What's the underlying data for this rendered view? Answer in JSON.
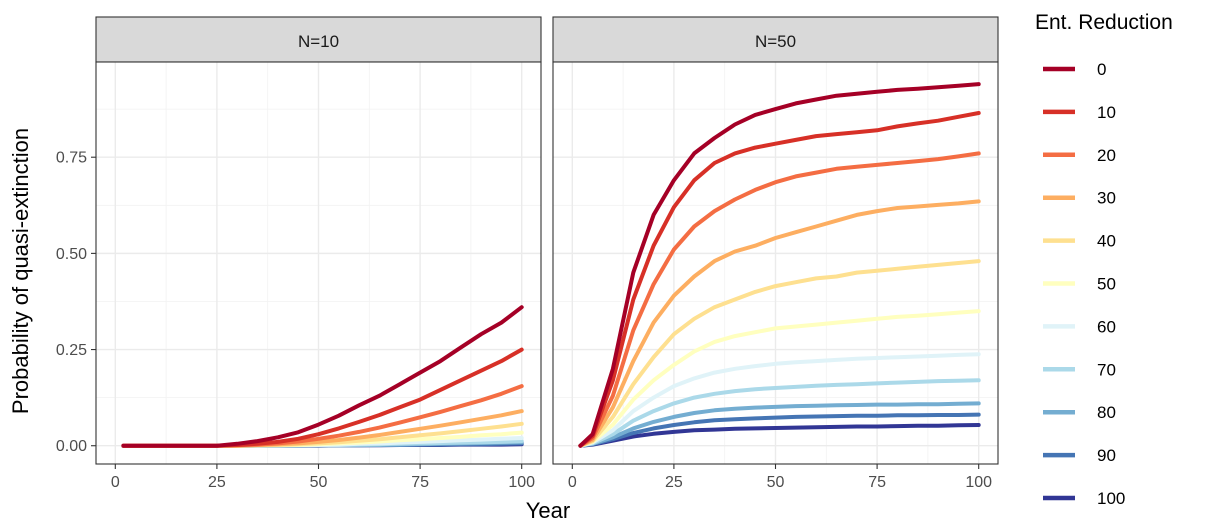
{
  "chart_data": {
    "type": "line",
    "xlabel": "Year",
    "ylabel": "Probability of quasi-extinction",
    "xlim": [
      0,
      100
    ],
    "ylim": [
      0,
      0.95
    ],
    "x_ticks": [
      0,
      25,
      50,
      75,
      100
    ],
    "y_ticks": [
      0.0,
      0.25,
      0.5,
      0.75
    ],
    "y_tick_labels": [
      "0.00",
      "0.25",
      "0.50",
      "0.75"
    ],
    "x_tick_labels": [
      "0",
      "25",
      "50",
      "75",
      "100"
    ],
    "grid": true,
    "theme": "ggplot2 theme_bw",
    "x": [
      2,
      5,
      10,
      15,
      20,
      25,
      30,
      35,
      40,
      45,
      50,
      55,
      60,
      65,
      70,
      75,
      80,
      85,
      90,
      95,
      100
    ],
    "legend": {
      "title": "Ent. Reduction",
      "position": "right",
      "entries": [
        {
          "label": "0",
          "color": "#A50026"
        },
        {
          "label": "10",
          "color": "#D73027"
        },
        {
          "label": "20",
          "color": "#F46D43"
        },
        {
          "label": "30",
          "color": "#FDAE61"
        },
        {
          "label": "40",
          "color": "#FEE090"
        },
        {
          "label": "50",
          "color": "#FFFFBF"
        },
        {
          "label": "60",
          "color": "#E0F3F8"
        },
        {
          "label": "70",
          "color": "#ABD9E9"
        },
        {
          "label": "80",
          "color": "#74ADD1"
        },
        {
          "label": "90",
          "color": "#4575B4"
        },
        {
          "label": "100",
          "color": "#313695"
        }
      ]
    },
    "panels": [
      {
        "strip": "N=10",
        "series": [
          {
            "name": "0",
            "values": [
              0,
              0,
              0,
              0,
              0,
              0,
              0.005,
              0.012,
              0.022,
              0.035,
              0.055,
              0.078,
              0.105,
              0.13,
              0.16,
              0.19,
              0.22,
              0.255,
              0.29,
              0.32,
              0.36
            ]
          },
          {
            "name": "10",
            "values": [
              0,
              0,
              0,
              0,
              0,
              0,
              0.002,
              0.005,
              0.01,
              0.018,
              0.03,
              0.045,
              0.062,
              0.08,
              0.1,
              0.12,
              0.145,
              0.17,
              0.195,
              0.22,
              0.25
            ]
          },
          {
            "name": "20",
            "values": [
              0,
              0,
              0,
              0,
              0,
              0,
              0.001,
              0.003,
              0.006,
              0.011,
              0.018,
              0.026,
              0.036,
              0.047,
              0.06,
              0.074,
              0.088,
              0.103,
              0.118,
              0.135,
              0.155
            ]
          },
          {
            "name": "30",
            "values": [
              0,
              0,
              0,
              0,
              0,
              0,
              0,
              0.002,
              0.004,
              0.006,
              0.01,
              0.015,
              0.021,
              0.028,
              0.036,
              0.044,
              0.052,
              0.061,
              0.07,
              0.079,
              0.09
            ]
          },
          {
            "name": "40",
            "values": [
              0,
              0,
              0,
              0,
              0,
              0,
              0,
              0.001,
              0.002,
              0.004,
              0.006,
              0.009,
              0.013,
              0.017,
              0.022,
              0.027,
              0.032,
              0.038,
              0.044,
              0.05,
              0.057
            ]
          },
          {
            "name": "50",
            "values": [
              0,
              0,
              0,
              0,
              0,
              0,
              0,
              0.001,
              0.001,
              0.002,
              0.004,
              0.006,
              0.008,
              0.011,
              0.014,
              0.017,
              0.02,
              0.023,
              0.027,
              0.03,
              0.034
            ]
          },
          {
            "name": "60",
            "values": [
              0,
              0,
              0,
              0,
              0,
              0,
              0,
              0,
              0.001,
              0.001,
              0.002,
              0.003,
              0.005,
              0.006,
              0.008,
              0.01,
              0.012,
              0.014,
              0.016,
              0.018,
              0.02
            ]
          },
          {
            "name": "70",
            "values": [
              0,
              0,
              0,
              0,
              0,
              0,
              0,
              0,
              0,
              0.001,
              0.001,
              0.002,
              0.003,
              0.004,
              0.005,
              0.006,
              0.007,
              0.008,
              0.009,
              0.01,
              0.012
            ]
          },
          {
            "name": "80",
            "values": [
              0,
              0,
              0,
              0,
              0,
              0,
              0,
              0,
              0,
              0,
              0.001,
              0.001,
              0.002,
              0.002,
              0.003,
              0.004,
              0.005,
              0.006,
              0.007,
              0.008,
              0.009
            ]
          },
          {
            "name": "90",
            "values": [
              0,
              0,
              0,
              0,
              0,
              0,
              0,
              0,
              0,
              0,
              0.001,
              0.001,
              0.001,
              0.002,
              0.002,
              0.003,
              0.003,
              0.004,
              0.004,
              0.005,
              0.006
            ]
          },
          {
            "name": "100",
            "values": [
              0,
              0,
              0,
              0,
              0,
              0,
              0,
              0,
              0,
              0,
              0,
              0.001,
              0.001,
              0.001,
              0.002,
              0.002,
              0.002,
              0.003,
              0.003,
              0.003,
              0.004
            ]
          }
        ]
      },
      {
        "strip": "N=50",
        "series": [
          {
            "name": "0",
            "values": [
              0,
              0.03,
              0.2,
              0.45,
              0.6,
              0.69,
              0.76,
              0.8,
              0.835,
              0.86,
              0.875,
              0.89,
              0.9,
              0.91,
              0.915,
              0.92,
              0.925,
              0.928,
              0.932,
              0.936,
              0.94
            ]
          },
          {
            "name": "10",
            "values": [
              0,
              0.025,
              0.17,
              0.38,
              0.52,
              0.62,
              0.69,
              0.735,
              0.76,
              0.775,
              0.785,
              0.795,
              0.805,
              0.81,
              0.815,
              0.82,
              0.83,
              0.838,
              0.845,
              0.855,
              0.865
            ]
          },
          {
            "name": "20",
            "values": [
              0,
              0.02,
              0.13,
              0.3,
              0.42,
              0.51,
              0.57,
              0.61,
              0.64,
              0.665,
              0.685,
              0.7,
              0.71,
              0.72,
              0.725,
              0.73,
              0.735,
              0.74,
              0.745,
              0.752,
              0.76
            ]
          },
          {
            "name": "30",
            "values": [
              0,
              0.015,
              0.1,
              0.22,
              0.32,
              0.39,
              0.44,
              0.48,
              0.505,
              0.52,
              0.54,
              0.555,
              0.57,
              0.585,
              0.6,
              0.61,
              0.618,
              0.622,
              0.626,
              0.63,
              0.635
            ]
          },
          {
            "name": "40",
            "values": [
              0,
              0.012,
              0.075,
              0.16,
              0.23,
              0.29,
              0.33,
              0.36,
              0.38,
              0.4,
              0.415,
              0.425,
              0.435,
              0.44,
              0.45,
              0.455,
              0.46,
              0.465,
              0.47,
              0.475,
              0.48
            ]
          },
          {
            "name": "50",
            "values": [
              0,
              0.01,
              0.055,
              0.12,
              0.17,
              0.21,
              0.245,
              0.27,
              0.285,
              0.295,
              0.305,
              0.31,
              0.315,
              0.32,
              0.325,
              0.33,
              0.335,
              0.338,
              0.342,
              0.346,
              0.35
            ]
          },
          {
            "name": "60",
            "values": [
              0,
              0.008,
              0.04,
              0.09,
              0.125,
              0.155,
              0.175,
              0.19,
              0.2,
              0.207,
              0.213,
              0.217,
              0.22,
              0.223,
              0.226,
              0.228,
              0.23,
              0.232,
              0.234,
              0.236,
              0.238
            ]
          },
          {
            "name": "70",
            "values": [
              0,
              0.006,
              0.03,
              0.065,
              0.09,
              0.11,
              0.125,
              0.135,
              0.142,
              0.147,
              0.15,
              0.153,
              0.156,
              0.158,
              0.16,
              0.162,
              0.164,
              0.166,
              0.168,
              0.169,
              0.17
            ]
          },
          {
            "name": "80",
            "values": [
              0,
              0.005,
              0.022,
              0.045,
              0.062,
              0.075,
              0.085,
              0.092,
              0.096,
              0.099,
              0.101,
              0.103,
              0.104,
              0.105,
              0.106,
              0.107,
              0.107,
              0.108,
              0.108,
              0.109,
              0.11
            ]
          },
          {
            "name": "90",
            "values": [
              0,
              0.004,
              0.017,
              0.033,
              0.045,
              0.054,
              0.061,
              0.066,
              0.069,
              0.071,
              0.073,
              0.075,
              0.076,
              0.077,
              0.078,
              0.078,
              0.079,
              0.079,
              0.08,
              0.08,
              0.081
            ]
          },
          {
            "name": "100",
            "values": [
              0,
              0.003,
              0.013,
              0.024,
              0.031,
              0.036,
              0.04,
              0.042,
              0.044,
              0.045,
              0.046,
              0.047,
              0.048,
              0.049,
              0.05,
              0.05,
              0.051,
              0.052,
              0.052,
              0.053,
              0.054
            ]
          }
        ]
      }
    ]
  }
}
